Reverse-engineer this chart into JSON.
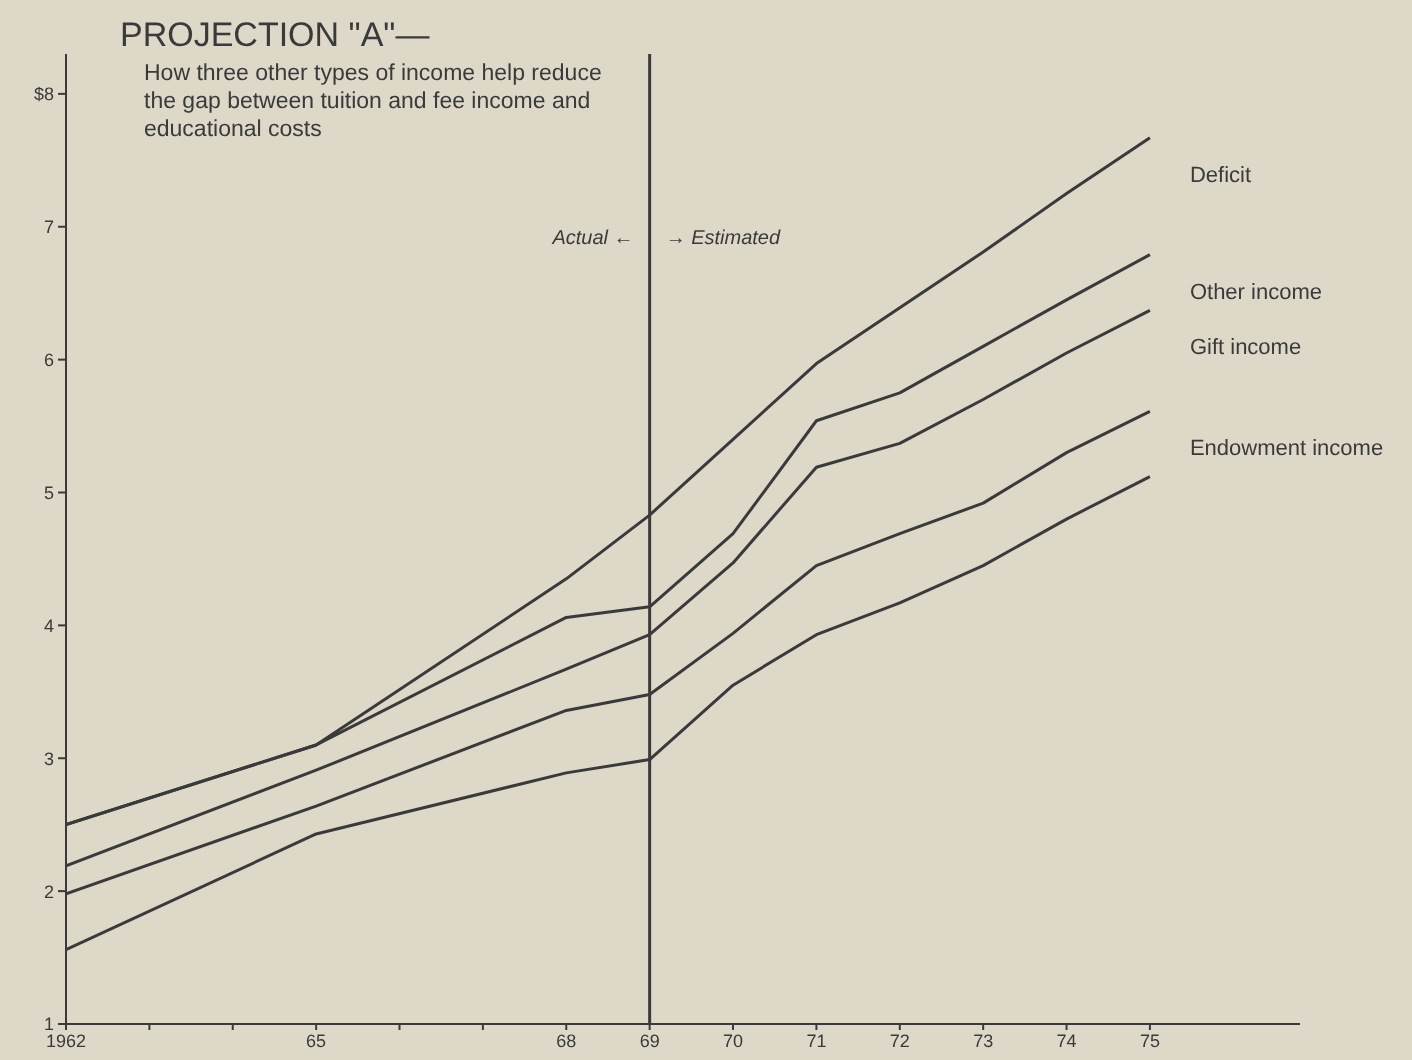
{
  "chart_data": {
    "type": "line",
    "title": "PROJECTION \"A\"—",
    "subtitle": "How three other types of income help reduce the gap between tuition and fee income and educational costs",
    "x": [
      1962,
      1965,
      1968,
      1969,
      1970,
      1971,
      1972,
      1973,
      1974,
      1975
    ],
    "series": [
      {
        "name": "Deficit",
        "color": "#3a3a3a",
        "values": [
          2.5,
          3.1,
          4.35,
          4.83,
          5.4,
          5.97,
          6.39,
          6.81,
          7.25,
          7.67
        ]
      },
      {
        "name": "Other income",
        "color": "#3a3a3a",
        "values": [
          2.5,
          3.1,
          4.06,
          4.14,
          4.69,
          5.54,
          5.75,
          6.1,
          6.45,
          6.79
        ]
      },
      {
        "name": "Gift income",
        "color": "#3a3a3a",
        "values": [
          2.19,
          2.91,
          3.67,
          3.93,
          4.47,
          5.19,
          5.37,
          5.7,
          6.05,
          6.37
        ]
      },
      {
        "name": "Endowment income",
        "color": "#3a3a3a",
        "values": [
          1.98,
          2.64,
          3.36,
          3.48,
          3.94,
          4.45,
          4.69,
          4.92,
          5.3,
          5.61
        ]
      },
      {
        "color": "#3a3a3a",
        "values": [
          1.56,
          2.43,
          2.89,
          2.99,
          3.55,
          3.93,
          4.17,
          4.45,
          4.8,
          5.12
        ]
      }
    ],
    "xlim": [
      1962,
      1976.8
    ],
    "xticks": [
      {
        "value": 1962,
        "label": "1962"
      },
      {
        "value": 1963,
        "label": null
      },
      {
        "value": 1964,
        "label": null
      },
      {
        "value": 1965,
        "label": "65"
      },
      {
        "value": 1966,
        "label": null
      },
      {
        "value": 1967,
        "label": null
      },
      {
        "value": 1968,
        "label": "68"
      },
      {
        "value": 1969,
        "label": "69"
      },
      {
        "value": 1970,
        "label": "70"
      },
      {
        "value": 1971,
        "label": "71"
      },
      {
        "value": 1972,
        "label": "72"
      },
      {
        "value": 1973,
        "label": "73"
      },
      {
        "value": 1974,
        "label": "74"
      },
      {
        "value": 1975,
        "label": "75"
      }
    ],
    "ylim": [
      1,
      8.3
    ],
    "yticks": [
      1,
      2,
      3,
      4,
      5,
      6,
      7,
      {
        "value": 8,
        "label": "$8"
      }
    ],
    "ref_lines": [
      {
        "axis": "x",
        "value": 1969,
        "color": "#3a3a3a"
      }
    ],
    "annotations": [
      "Actual ←",
      "→ Estimated"
    ],
    "grid": false,
    "marker": "none",
    "line_style": "solid"
  }
}
